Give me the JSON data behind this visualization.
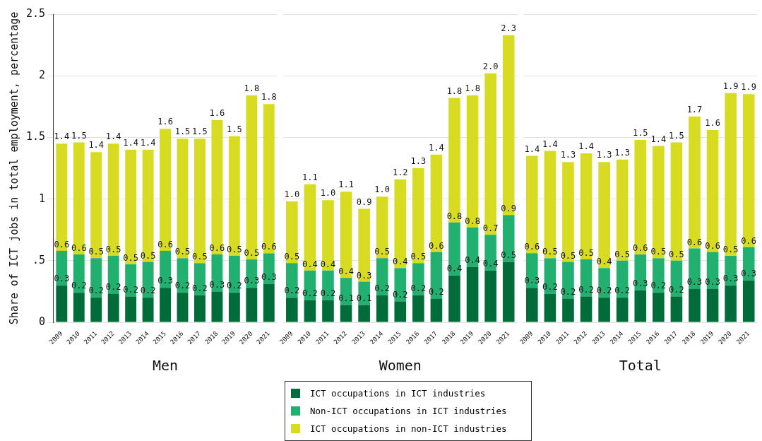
{
  "chart_data": [
    {
      "type": "bar",
      "xlabel": "Men",
      "ylabel": "Share of ICT jobs in total employment, percentage",
      "stacked": true,
      "grid": "y",
      "legend": "bottom",
      "categories": [
        "2009",
        "2010",
        "2011",
        "2012",
        "2013",
        "2014",
        "2015",
        "2016",
        "2017",
        "2018",
        "2019",
        "2020",
        "2021"
      ],
      "ylim": [
        0,
        2.5
      ],
      "yticks": [
        0,
        {
          "value": 0.5,
          "label": ".5"
        },
        1,
        1.5,
        2,
        2.5
      ],
      "series": [
        {
          "name": "ICT occupations in ICT industries",
          "color": "#006c3a",
          "values": [
            0.3,
            0.24,
            0.2,
            0.23,
            0.21,
            0.2,
            0.28,
            0.24,
            0.22,
            0.25,
            0.24,
            0.28,
            0.31
          ],
          "value_labels": [
            "0.3",
            "0.2",
            "0.2",
            "0.2",
            "0.2",
            "0.2",
            "0.3",
            "0.2",
            "0.2",
            "0.3",
            "0.2",
            "0.3",
            "0.3"
          ]
        },
        {
          "name": "Non-ICT occupations in ICT industries",
          "color": "#22b070",
          "values": [
            0.28,
            0.31,
            0.32,
            0.31,
            0.26,
            0.29,
            0.3,
            0.28,
            0.26,
            0.3,
            0.3,
            0.23,
            0.25
          ]
        },
        {
          "name": "ICT occupations in non-ICT industries",
          "color": "#d7dc22",
          "values": [
            0.87,
            0.91,
            0.86,
            0.91,
            0.93,
            0.91,
            0.99,
            0.97,
            1.01,
            1.09,
            0.97,
            1.33,
            1.21
          ]
        }
      ],
      "totals": [
        "1.4",
        "1.5",
        "1.4",
        "1.4",
        "1.4",
        "1.4",
        "1.6",
        "1.5",
        "1.5",
        "1.6",
        "1.5",
        "1.8",
        "1.8"
      ],
      "annotations": [
        {
          "text": "0.6",
          "x": "2009",
          "y": 0.58
        },
        {
          "text": "0.6",
          "x": "2010",
          "y": 0.55
        },
        {
          "text": "0.5",
          "x": "2011",
          "y": 0.52
        },
        {
          "text": "0.5",
          "x": "2012",
          "y": 0.54
        },
        {
          "text": "0.5",
          "x": "2013",
          "y": 0.47
        },
        {
          "text": "0.5",
          "x": "2014",
          "y": 0.49
        },
        {
          "text": "0.6",
          "x": "2015",
          "y": 0.58
        },
        {
          "text": "0.5",
          "x": "2016",
          "y": 0.52
        },
        {
          "text": "0.5",
          "x": "2017",
          "y": 0.48
        },
        {
          "text": "0.6",
          "x": "2018",
          "y": 0.55
        },
        {
          "text": "0.5",
          "x": "2019",
          "y": 0.54
        },
        {
          "text": "0.5",
          "x": "2020",
          "y": 0.51
        },
        {
          "text": "0.6",
          "x": "2021",
          "y": 0.56
        }
      ]
    },
    {
      "type": "bar",
      "xlabel": "Women",
      "stacked": true,
      "grid": "y",
      "tick_labels": "x",
      "categories": [
        "2009",
        "2010",
        "2011",
        "2012",
        "2013",
        "2014",
        "2015",
        "2016",
        "2017",
        "2018",
        "2019",
        "2020",
        "2021"
      ],
      "ylim": [
        0,
        2.5
      ],
      "yticks": [
        0,
        0.5,
        1,
        1.5,
        2,
        2.5
      ],
      "series": [
        {
          "color": "#006c3a",
          "values": [
            0.2,
            0.18,
            0.18,
            0.14,
            0.14,
            0.22,
            0.17,
            0.22,
            0.19,
            0.38,
            0.45,
            0.42,
            0.49
          ],
          "value_labels": [
            "0.2",
            "0.2",
            "0.2",
            "0.1",
            "0.1",
            "0.2",
            "0.2",
            "0.2",
            "0.2",
            "0.4",
            "0.4",
            "0.4",
            "0.5"
          ]
        },
        {
          "color": "#22b070",
          "values": [
            0.28,
            0.24,
            0.24,
            0.22,
            0.19,
            0.3,
            0.27,
            0.26,
            0.38,
            0.43,
            0.32,
            0.29,
            0.38
          ]
        },
        {
          "color": "#d7dc22",
          "values": [
            0.5,
            0.7,
            0.57,
            0.7,
            0.59,
            0.5,
            0.72,
            0.77,
            0.79,
            1.01,
            1.07,
            1.31,
            1.46
          ]
        }
      ],
      "totals": [
        "1.0",
        "1.1",
        "1.0",
        "1.1",
        "0.9",
        "1.0",
        "1.2",
        "1.3",
        "1.4",
        "1.8",
        "1.8",
        "2.0",
        "2.3"
      ],
      "annotations": [
        {
          "text": "0.5",
          "x": "2009",
          "y": 0.48
        },
        {
          "text": "0.4",
          "x": "2010",
          "y": 0.42
        },
        {
          "text": "0.4",
          "x": "2011",
          "y": 0.42
        },
        {
          "text": "0.4",
          "x": "2012",
          "y": 0.36
        },
        {
          "text": "0.3",
          "x": "2013",
          "y": 0.33
        },
        {
          "text": "0.5",
          "x": "2014",
          "y": 0.52
        },
        {
          "text": "0.4",
          "x": "2015",
          "y": 0.44
        },
        {
          "text": "0.5",
          "x": "2016",
          "y": 0.48
        },
        {
          "text": "0.6",
          "x": "2017",
          "y": 0.57
        },
        {
          "text": "0.8",
          "x": "2018",
          "y": 0.81
        },
        {
          "text": "0.8",
          "x": "2019",
          "y": 0.77
        },
        {
          "text": "0.7",
          "x": "2020",
          "y": 0.71
        },
        {
          "text": "0.9",
          "x": "2021",
          "y": 0.87
        }
      ]
    },
    {
      "type": "bar",
      "xlabel": "Total",
      "stacked": true,
      "grid": "y",
      "tick_labels": "x",
      "categories": [
        "2009",
        "2010",
        "2011",
        "2012",
        "2013",
        "2014",
        "2015",
        "2016",
        "2017",
        "2018",
        "2019",
        "2020",
        "2021"
      ],
      "ylim": [
        0,
        2.5
      ],
      "yticks": [
        0,
        0.5,
        1,
        1.5,
        2,
        2.5
      ],
      "series": [
        {
          "color": "#006c3a",
          "values": [
            0.28,
            0.23,
            0.19,
            0.21,
            0.2,
            0.2,
            0.26,
            0.24,
            0.21,
            0.27,
            0.27,
            0.3,
            0.34
          ],
          "value_labels": [
            "0.3",
            "0.2",
            "0.2",
            "0.2",
            "0.2",
            "0.2",
            "0.3",
            "0.2",
            "0.2",
            "0.3",
            "0.3",
            "0.3",
            "0.3"
          ]
        },
        {
          "color": "#22b070",
          "values": [
            0.28,
            0.29,
            0.3,
            0.3,
            0.24,
            0.3,
            0.29,
            0.28,
            0.29,
            0.33,
            0.3,
            0.24,
            0.27
          ]
        },
        {
          "color": "#d7dc22",
          "values": [
            0.79,
            0.87,
            0.81,
            0.86,
            0.86,
            0.82,
            0.93,
            0.91,
            0.96,
            1.07,
            0.99,
            1.32,
            1.24
          ]
        }
      ],
      "totals": [
        "1.4",
        "1.4",
        "1.3",
        "1.4",
        "1.3",
        "1.3",
        "1.5",
        "1.4",
        "1.5",
        "1.7",
        "1.6",
        "1.9",
        "1.9"
      ],
      "annotations": [
        {
          "text": "0.6",
          "x": "2009",
          "y": 0.56
        },
        {
          "text": "0.5",
          "x": "2010",
          "y": 0.52
        },
        {
          "text": "0.5",
          "x": "2011",
          "y": 0.49
        },
        {
          "text": "0.5",
          "x": "2012",
          "y": 0.51
        },
        {
          "text": "0.4",
          "x": "2013",
          "y": 0.44
        },
        {
          "text": "0.5",
          "x": "2014",
          "y": 0.5
        },
        {
          "text": "0.6",
          "x": "2015",
          "y": 0.55
        },
        {
          "text": "0.5",
          "x": "2016",
          "y": 0.52
        },
        {
          "text": "0.5",
          "x": "2017",
          "y": 0.5
        },
        {
          "text": "0.6",
          "x": "2018",
          "y": 0.6
        },
        {
          "text": "0.6",
          "x": "2019",
          "y": 0.57
        },
        {
          "text": "0.5",
          "x": "2020",
          "y": 0.54
        },
        {
          "text": "0.6",
          "x": "2021",
          "y": 0.61
        }
      ]
    }
  ]
}
